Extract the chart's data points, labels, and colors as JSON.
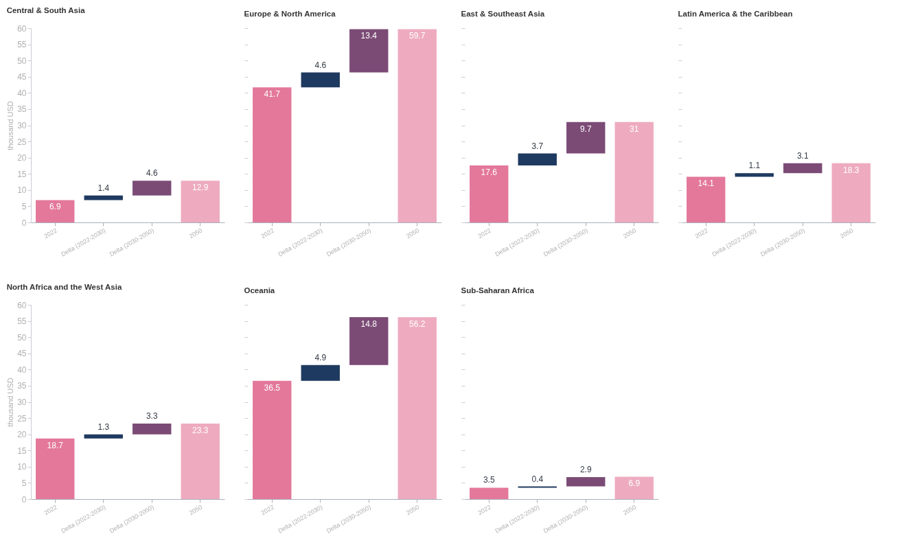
{
  "chart_data": [
    {
      "type": "bar",
      "title": "Central & South Asia",
      "ylabel": "thousand USD",
      "categories": [
        "2022",
        "Delta (2022-2030)",
        "Delta (2030-2050)",
        "2050"
      ],
      "values": [
        6.9,
        1.4,
        4.6,
        12.9
      ],
      "base": [
        0,
        6.9,
        8.3,
        0
      ],
      "colors": [
        "#e3789b",
        "#1f3a60",
        "#7b4b76",
        "#eeabc0"
      ],
      "ylim": [
        0,
        60
      ],
      "yticks": [
        0,
        5,
        10,
        15,
        20,
        25,
        30,
        35,
        40,
        45,
        50,
        55,
        60
      ],
      "data_labels": true
    },
    {
      "type": "bar",
      "title": "Europe & North America",
      "categories": [
        "2022",
        "Delta (2022-2030)",
        "Delta (2030-2050)",
        "2050"
      ],
      "values": [
        41.7,
        4.6,
        13.4,
        59.7
      ],
      "base": [
        0,
        41.7,
        46.3,
        0
      ],
      "colors": [
        "#e3789b",
        "#1f3a60",
        "#7b4b76",
        "#eeabc0"
      ],
      "ylim": [
        0,
        60
      ],
      "yticks": [
        0,
        5,
        10,
        15,
        20,
        25,
        30,
        35,
        40,
        45,
        50,
        55,
        60
      ],
      "tick_labels": "x",
      "data_labels": true
    },
    {
      "type": "bar",
      "title": "East & Southeast Asia",
      "categories": [
        "2022",
        "Delta (2022-2030)",
        "Delta (2030-2050)",
        "2050"
      ],
      "values": [
        17.6,
        3.7,
        9.7,
        31
      ],
      "base": [
        0,
        17.6,
        21.3,
        0
      ],
      "colors": [
        "#e3789b",
        "#1f3a60",
        "#7b4b76",
        "#eeabc0"
      ],
      "ylim": [
        0,
        60
      ],
      "yticks": [
        0,
        5,
        10,
        15,
        20,
        25,
        30,
        35,
        40,
        45,
        50,
        55,
        60
      ],
      "tick_labels": "x",
      "data_labels": true
    },
    {
      "type": "bar",
      "title": "Latin America & the Caribbean",
      "categories": [
        "2022",
        "Delta (2022-2030)",
        "Delta (2030-2050)",
        "2050"
      ],
      "values": [
        14.1,
        1.1,
        3.1,
        18.3
      ],
      "base": [
        0,
        14.1,
        15.2,
        0
      ],
      "colors": [
        "#e3789b",
        "#1f3a60",
        "#7b4b76",
        "#eeabc0"
      ],
      "ylim": [
        0,
        60
      ],
      "yticks": [
        0,
        5,
        10,
        15,
        20,
        25,
        30,
        35,
        40,
        45,
        50,
        55,
        60
      ],
      "tick_labels": "x",
      "data_labels": true
    },
    {
      "type": "bar",
      "title": "North Africa and the West Asia",
      "ylabel": "thousand USD",
      "categories": [
        "2022",
        "Delta (2022-2030)",
        "Delta (2030-2050)",
        "2050"
      ],
      "values": [
        18.7,
        1.3,
        3.3,
        23.3
      ],
      "base": [
        0,
        18.7,
        20.0,
        0
      ],
      "colors": [
        "#e3789b",
        "#1f3a60",
        "#7b4b76",
        "#eeabc0"
      ],
      "ylim": [
        0,
        60
      ],
      "yticks": [
        0,
        5,
        10,
        15,
        20,
        25,
        30,
        35,
        40,
        45,
        50,
        55,
        60
      ],
      "data_labels": true
    },
    {
      "type": "bar",
      "title": "Oceania",
      "categories": [
        "2022",
        "Delta (2022-2030)",
        "Delta (2030-2050)",
        "2050"
      ],
      "values": [
        36.5,
        4.9,
        14.8,
        56.2
      ],
      "base": [
        0,
        36.5,
        41.4,
        0
      ],
      "colors": [
        "#e3789b",
        "#1f3a60",
        "#7b4b76",
        "#eeabc0"
      ],
      "ylim": [
        0,
        60
      ],
      "yticks": [
        0,
        5,
        10,
        15,
        20,
        25,
        30,
        35,
        40,
        45,
        50,
        55,
        60
      ],
      "tick_labels": "x",
      "data_labels": true
    },
    {
      "type": "bar",
      "title": "Sub-Saharan Africa",
      "categories": [
        "2022",
        "Delta (2022-2030)",
        "Delta (2030-2050)",
        "2050"
      ],
      "values": [
        3.5,
        0.4,
        2.9,
        6.9
      ],
      "base": [
        0,
        3.5,
        3.9,
        0
      ],
      "colors": [
        "#e3789b",
        "#1f3a60",
        "#7b4b76",
        "#eeabc0"
      ],
      "ylim": [
        0,
        60
      ],
      "yticks": [
        0,
        5,
        10,
        15,
        20,
        25,
        30,
        35,
        40,
        45,
        50,
        55,
        60
      ],
      "tick_labels": "x",
      "data_labels": true
    }
  ]
}
